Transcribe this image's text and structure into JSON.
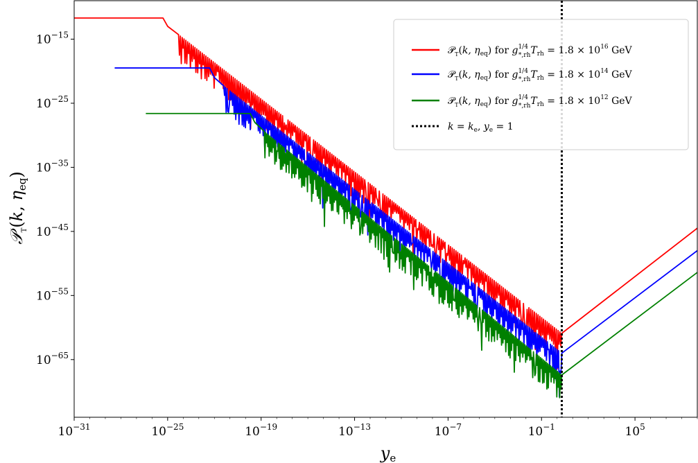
{
  "chart_data": {
    "type": "line",
    "xlabel": "y_e",
    "ylabel": "P_T(k, η_eq)",
    "x_scale": "log",
    "y_scale": "log",
    "xlim_log10": [
      -31,
      9
    ],
    "ylim_log10": [
      -74,
      -9
    ],
    "x_ticks": [
      {
        "exp": -31,
        "label": "10^-31"
      },
      {
        "exp": -25,
        "label": "10^-25"
      },
      {
        "exp": -19,
        "label": "10^-19"
      },
      {
        "exp": -13,
        "label": "10^-13"
      },
      {
        "exp": -7,
        "label": "10^-7"
      },
      {
        "exp": -1,
        "label": "10^-1"
      },
      {
        "exp": 5,
        "label": "10^5"
      }
    ],
    "y_ticks": [
      {
        "exp": -15,
        "label": "10^-15"
      },
      {
        "exp": -25,
        "label": "10^-25"
      },
      {
        "exp": -35,
        "label": "10^-35"
      },
      {
        "exp": -45,
        "label": "10^-45"
      },
      {
        "exp": -55,
        "label": "10^-55"
      },
      {
        "exp": -65,
        "label": "10^-65"
      }
    ],
    "grid": false,
    "legend_position": "top-right",
    "series": [
      {
        "name": "P_T(k, η_eq) for g*,rh^1/4 T_rh = 1.8 × 10^16 GeV",
        "color": "#ff0000",
        "points_log10": [
          [
            -31,
            -11.7
          ],
          [
            -25.3,
            -11.7
          ],
          [
            -25.0,
            -13.0
          ],
          [
            -24.3,
            -14.3
          ],
          [
            0.3,
            -60.9
          ],
          [
            9,
            -44.5
          ]
        ]
      },
      {
        "name": "P_T(k, η_eq) for g*,rh^1/4 T_rh = 1.8 × 10^14 GeV",
        "color": "#0000ff",
        "points_log10": [
          [
            -28.4,
            -19.5
          ],
          [
            -22.3,
            -19.5
          ],
          [
            -22.0,
            -21.0
          ],
          [
            -21.4,
            -22.3
          ],
          [
            0.3,
            -64.0
          ],
          [
            9,
            -48.0
          ]
        ]
      },
      {
        "name": "P_T(k, η_eq) for g*,rh^1/4 T_rh = 1.8 × 10^12 GeV",
        "color": "#008000",
        "points_log10": [
          [
            -26.4,
            -26.6
          ],
          [
            -19.7,
            -26.6
          ],
          [
            -19.4,
            -28.0
          ],
          [
            -18.8,
            -29.4
          ],
          [
            0.3,
            -67.4
          ],
          [
            9,
            -51.4
          ]
        ]
      },
      {
        "name": "k = k_e, y_e = 1",
        "color": "#000000",
        "dashed": true,
        "x_log10": 0.3
      }
    ]
  }
}
